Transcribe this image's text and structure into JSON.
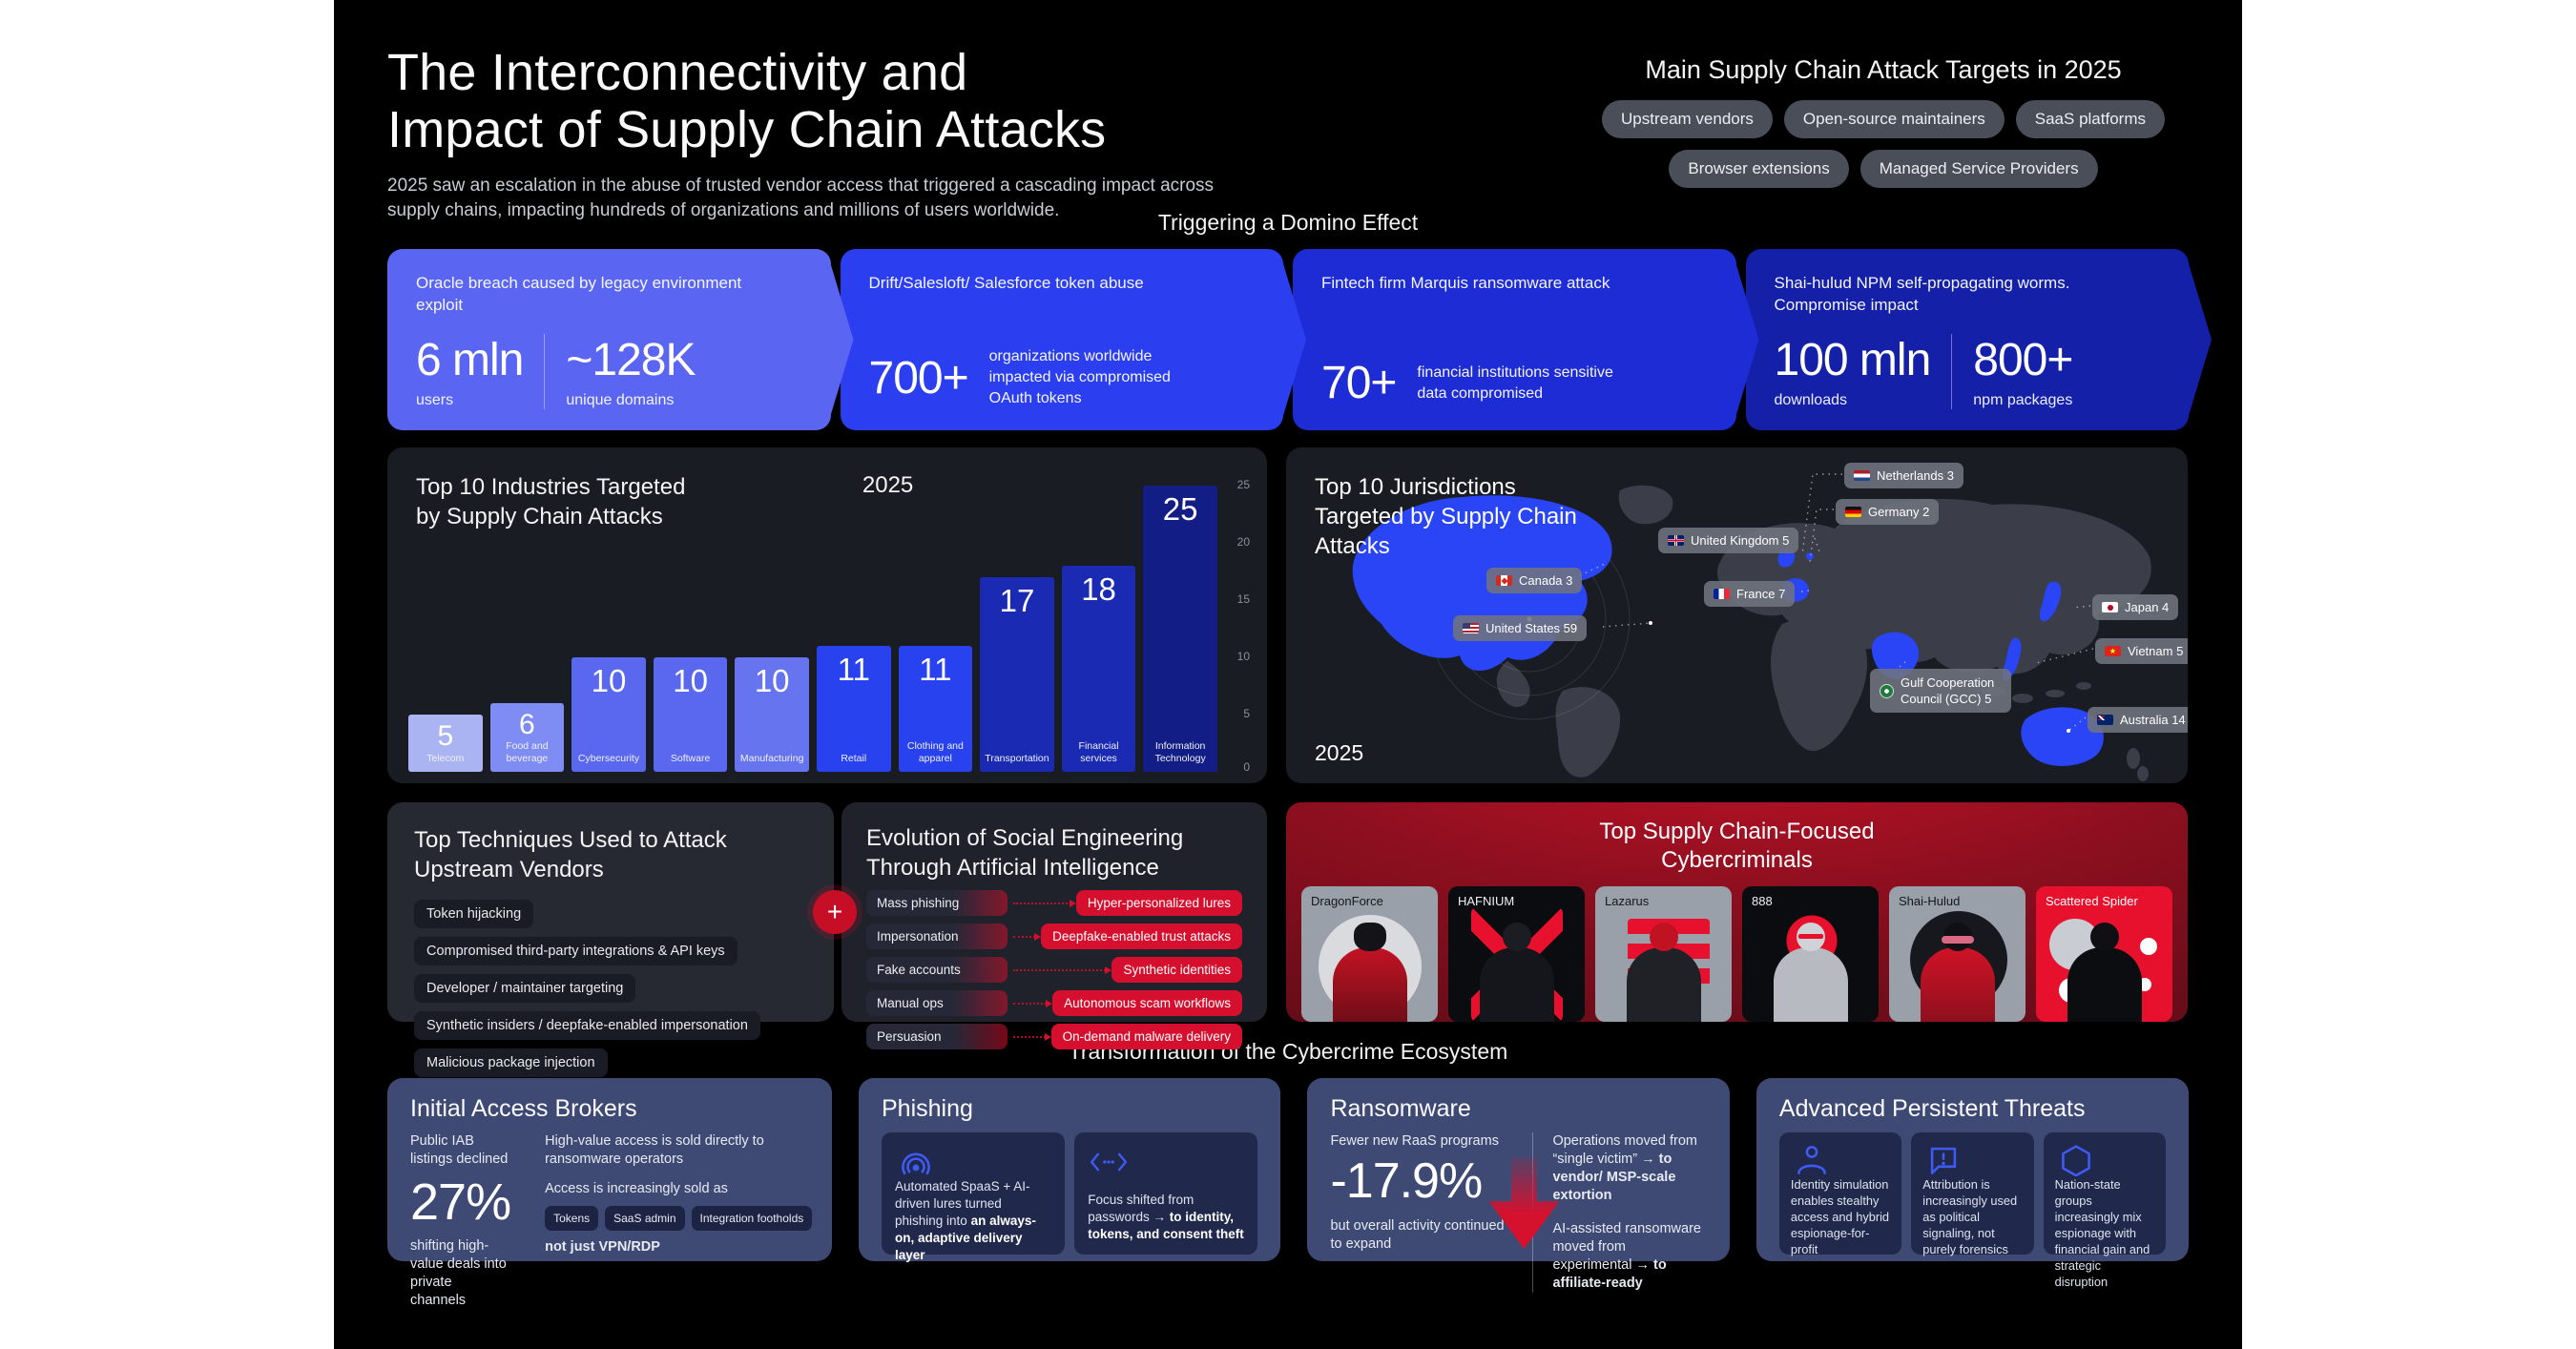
{
  "colors": {
    "accent_red": "#d50f2d",
    "bright_blue": "#2945f5",
    "slate_panel": "#3e4a74",
    "dark_panel": "#1a1c24",
    "card_red": "#e8112d"
  },
  "header": {
    "title_line1": "The Interconnectivity and",
    "title_line2": "Impact of Supply Chain Attacks",
    "subtitle": "2025 saw an escalation in the abuse of trusted vendor access that triggered a cascading impact across supply chains, impacting hundreds of organizations and millions of users worldwide."
  },
  "targets": {
    "heading": "Main Supply Chain Attack Targets in 2025",
    "pills": [
      "Upstream vendors",
      "Open-source maintainers",
      "SaaS platforms",
      "Browser extensions",
      "Managed Service Providers"
    ]
  },
  "domino": {
    "heading": "Triggering a Domino Effect",
    "cards": [
      {
        "title": "Oracle breach caused by legacy environment exploit",
        "color": "#5a66f2",
        "stat1_value": "6 mln",
        "stat1_label": "users",
        "stat2_value": "~128K",
        "stat2_label": "unique domains"
      },
      {
        "title": "Drift/Salesloft/ Salesforce token abuse",
        "color": "#2b3ff0",
        "stat1_value": "700+",
        "stat1_label": "organizations worldwide impacted via compromised OAuth tokens"
      },
      {
        "title": "Fintech firm Marquis ransomware attack",
        "color": "#1e2cd6",
        "stat1_value": "70+",
        "stat1_label": "financial institutions sensitive data compromised"
      },
      {
        "title": "Shai-hulud NPM self-propagating worms. Compromise impact",
        "color": "#1420a8",
        "stat1_value": "100 mln",
        "stat1_label": "downloads",
        "stat2_value": "800+",
        "stat2_label": "npm packages"
      }
    ]
  },
  "chart_data": [
    {
      "type": "bar",
      "title": "Top 10 Industries Targeted by Supply Chain Attacks",
      "year_label": "2025",
      "categories": [
        "Telecom",
        "Food and beverage",
        "Cybersecurity",
        "Software",
        "Manufacturing",
        "Retail",
        "Clothing and apparel",
        "Transportation",
        "Financial services",
        "Information Technology"
      ],
      "values": [
        5,
        6,
        10,
        10,
        10,
        11,
        11,
        17,
        18,
        25
      ],
      "bar_colors": [
        "#aab4f2",
        "#7f8cf4",
        "#5a68f0",
        "#5a68f0",
        "#6774f0",
        "#2742ee",
        "#2742ee",
        "#1a2ab2",
        "#1a2ab2",
        "#121d86"
      ],
      "xlabel": "",
      "ylabel": "",
      "ylim": [
        0,
        25
      ],
      "yticks": [
        0,
        5,
        10,
        15,
        20,
        25
      ],
      "grid": false,
      "legend": "none"
    },
    {
      "type": "map",
      "title": "Top 10 Jurisdictions Targeted by Supply Chain Attacks",
      "year_label": "2025",
      "locations": [
        {
          "name": "Netherlands",
          "value": 3
        },
        {
          "name": "Germany",
          "value": 2
        },
        {
          "name": "United Kingdom",
          "value": 5
        },
        {
          "name": "Canada",
          "value": 3
        },
        {
          "name": "France",
          "value": 7
        },
        {
          "name": "United States",
          "value": 59
        },
        {
          "name": "Japan",
          "value": 4
        },
        {
          "name": "Vietnam",
          "value": 5
        },
        {
          "name": "Gulf Cooperation Council (GCC)",
          "value": 5
        },
        {
          "name": "Australia",
          "value": 14
        }
      ]
    }
  ],
  "map_labels": [
    "Netherlands 3",
    "Germany 2",
    "United Kingdom 5",
    "Canada 3",
    "France 7",
    "United States 59",
    "Japan 4",
    "Vietnam 5",
    "Gulf Cooperation Council (GCC) 5",
    "Australia 14"
  ],
  "techniques": {
    "title": "Top Techniques Used to Attack Upstream Vendors",
    "items": [
      "Token hijacking",
      "Compromised third-party integrations & API keys",
      "Developer / maintainer targeting",
      "Synthetic insiders / deepfake-enabled impersonation",
      "Malicious package injection"
    ],
    "plus_label": "+"
  },
  "evolution": {
    "title": "Evolution of Social Engineering Through Artificial Intelligence",
    "rows": [
      {
        "from": "Mass phishing",
        "to": "Hyper-personalized lures"
      },
      {
        "from": "Impersonation",
        "to": "Deepfake-enabled trust attacks"
      },
      {
        "from": "Fake accounts",
        "to": "Synthetic identities"
      },
      {
        "from": "Manual ops",
        "to": "Autonomous scam workflows"
      },
      {
        "from": "Persuasion",
        "to": "On-demand malware delivery"
      }
    ]
  },
  "criminals": {
    "title_line1": "Top Supply Chain-Focused",
    "title_line2": "Cybercriminals",
    "cards": [
      {
        "name": "DragonForce"
      },
      {
        "name": "HAFNIUM"
      },
      {
        "name": "Lazarus"
      },
      {
        "name": "888"
      },
      {
        "name": "Shai-Hulud"
      },
      {
        "name": "Scattered Spider"
      }
    ]
  },
  "ecosystem": {
    "heading": "Transformation of the Cybercrime Ecosystem",
    "iab": {
      "title": "Initial Access Brokers",
      "left_top": "Public IAB listings declined",
      "big_value": "27%",
      "left_bottom": "shifting high-value deals into private channels",
      "right_line1": "High-value access is sold directly to ransomware operators",
      "right_line2": "Access is increasingly sold as",
      "pills": [
        "Tokens",
        "SaaS admin",
        "Integration footholds"
      ],
      "right_line3": "not just VPN/RDP"
    },
    "phishing": {
      "title": "Phishing",
      "card1_normal": "Automated SpaaS + AI-driven lures turned phishing into ",
      "card1_bold": "an always-on, adaptive delivery layer",
      "card2_normal": "Focus shifted from passwords → ",
      "card2_bold": "to identity, tokens, and consent theft"
    },
    "ransomware": {
      "title": "Ransomware",
      "left_top": "Fewer new RaaS programs",
      "big_value": "-17.9%",
      "left_bottom": "but overall activity continued to expand",
      "p1_normal": "Operations moved from “single victim” → ",
      "p1_bold": "to vendor/ MSP-scale extortion",
      "p2_normal": "AI-assisted ransomware moved from experimental → ",
      "p2_bold": "to affiliate-ready"
    },
    "apt": {
      "title": "Advanced Persistent Threats",
      "card1": "Identity simulation enables stealthy access and hybrid espionage-for-profit",
      "card2": "Attribution is increasingly used as political signaling, not purely forensics",
      "card3": "Nation-state groups increasingly mix espionage with financial gain and strategic disruption"
    }
  },
  "icons": [
    "plus-icon",
    "radar-icon",
    "code-brackets-icon",
    "person-icon",
    "alert-bubble-icon",
    "hexagon-icon",
    "down-arrow-icon",
    "netherlands-flag-icon",
    "germany-flag-icon",
    "uk-flag-icon",
    "canada-flag-icon",
    "france-flag-icon",
    "us-flag-icon",
    "japan-flag-icon",
    "vietnam-flag-icon",
    "gcc-flag-icon",
    "australia-flag-icon"
  ]
}
